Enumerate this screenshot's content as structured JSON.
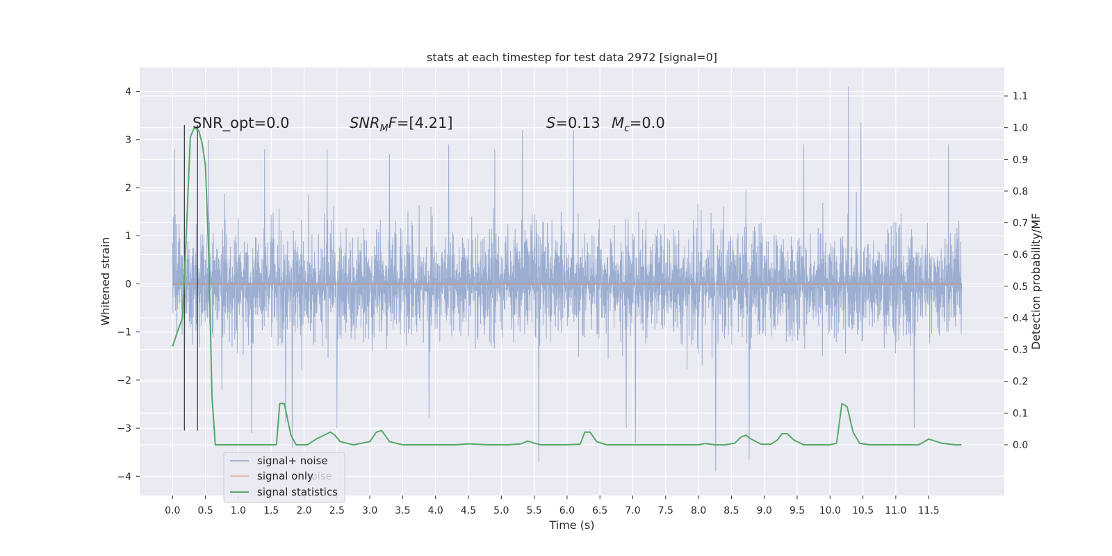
{
  "chart_data": {
    "type": "line",
    "title": "stats at each timestep for test data 2972 [signal=0]",
    "xlabel": "Time (s)",
    "ylabel": "Whitened strain",
    "y2label": "Detection probability/MF",
    "xlim": [
      -0.5,
      12.65
    ],
    "ylim": [
      -4.4,
      4.5
    ],
    "y2lim": [
      -0.16,
      1.19
    ],
    "x_ticks": [
      "0.0",
      "0.5",
      "1.0",
      "1.5",
      "2.0",
      "2.5",
      "3.0",
      "3.5",
      "4.0",
      "4.5",
      "5.0",
      "5.5",
      "6.0",
      "6.5",
      "7.0",
      "7.5",
      "8.0",
      "8.5",
      "9.0",
      "9.5",
      "10.0",
      "10.5",
      "11.0",
      "11.5"
    ],
    "y_ticks": [
      "4",
      "3",
      "2",
      "1",
      "0",
      "−1",
      "−2",
      "−3",
      "−4"
    ],
    "y2_ticks": [
      "1.1",
      "1.0",
      "0.9",
      "0.8",
      "0.7",
      "0.6",
      "0.5",
      "0.4",
      "0.3",
      "0.2",
      "0.1",
      "0.0"
    ],
    "grid": true,
    "legend_position": "lower-left",
    "annotations": {
      "snr_opt": "SNR_opt=0.0",
      "snr_mf": "=[4.21]",
      "snr_mf_main": "SNR",
      "snr_mf_sub": "M",
      "snr_mf_after": "F",
      "s_stat": "=0.13",
      "s_symbol": "S",
      "mc_symbol": "M",
      "mc_sub": "c",
      "mc_value": "=0.0"
    },
    "series": [
      {
        "name": "signal+ noise",
        "color": "#4c72b0",
        "description": "whitened strain, dense noise between about -2 and 2.5 with spikes",
        "range": [
          0.0,
          12.0
        ],
        "envelope_low": -1.9,
        "envelope_high": 2.3,
        "spikes": [
          [
            0.03,
            2.8
          ],
          [
            0.18,
            -1.9
          ],
          [
            0.55,
            3.0
          ],
          [
            0.75,
            -2.2
          ],
          [
            1.2,
            -3.1
          ],
          [
            1.4,
            2.8
          ],
          [
            1.72,
            -2.9
          ],
          [
            1.82,
            -3.4
          ],
          [
            2.35,
            2.8
          ],
          [
            2.5,
            -3.0
          ],
          [
            3.3,
            2.7
          ],
          [
            3.9,
            -2.8
          ],
          [
            4.2,
            2.9
          ],
          [
            4.9,
            2.8
          ],
          [
            5.32,
            3.2
          ],
          [
            5.57,
            -3.7
          ],
          [
            6.1,
            3.2
          ],
          [
            6.9,
            -3.0
          ],
          [
            7.04,
            -3.3
          ],
          [
            8.26,
            -3.9
          ],
          [
            8.77,
            -3.65
          ],
          [
            9.6,
            2.9
          ],
          [
            10.28,
            4.1
          ],
          [
            10.47,
            3.35
          ],
          [
            11.28,
            -3.0
          ],
          [
            11.8,
            2.9
          ]
        ]
      },
      {
        "name": "signal only",
        "color": "#dd8452",
        "x": [
          0.0,
          12.0
        ],
        "y": [
          0.0,
          0.0
        ]
      },
      {
        "name": "signal statistics",
        "color": "#55a868",
        "x": [
          0.0,
          0.08,
          0.15,
          0.2,
          0.27,
          0.33,
          0.4,
          0.45,
          0.5,
          0.55,
          0.6,
          0.65,
          0.8,
          1.0,
          1.3,
          1.58,
          1.63,
          1.7,
          1.8,
          1.88,
          1.95,
          2.05,
          2.2,
          2.4,
          2.47,
          2.55,
          2.75,
          3.0,
          3.1,
          3.18,
          3.3,
          3.5,
          3.8,
          4.0,
          4.3,
          4.5,
          4.8,
          5.1,
          5.3,
          5.4,
          5.5,
          5.6,
          6.0,
          6.2,
          6.27,
          6.35,
          6.45,
          6.6,
          7.0,
          8.0,
          8.1,
          8.25,
          8.4,
          8.55,
          8.65,
          8.72,
          8.8,
          8.95,
          9.1,
          9.2,
          9.27,
          9.35,
          9.45,
          9.6,
          10.0,
          10.1,
          10.18,
          10.26,
          10.35,
          10.45,
          10.6,
          11.0,
          11.2,
          11.35,
          11.5,
          11.7,
          11.9,
          12.0
        ],
        "y": [
          0.31,
          0.36,
          0.4,
          0.62,
          0.97,
          1.0,
          0.99,
          0.95,
          0.88,
          0.6,
          0.15,
          0.0,
          0.0,
          0.0,
          0.0,
          0.0,
          0.13,
          0.13,
          0.03,
          0.0,
          0.0,
          0.0,
          0.02,
          0.04,
          0.03,
          0.01,
          0.0,
          0.01,
          0.04,
          0.045,
          0.01,
          0.0,
          0.0,
          0.0,
          0.0,
          0.003,
          0.0,
          0.0,
          0.003,
          0.012,
          0.005,
          0.0,
          0.0,
          0.002,
          0.04,
          0.04,
          0.01,
          0.0,
          0.0,
          0.0,
          0.004,
          0.0,
          0.0,
          0.005,
          0.025,
          0.03,
          0.018,
          0.002,
          0.002,
          0.015,
          0.035,
          0.035,
          0.015,
          0.0,
          0.0,
          0.005,
          0.13,
          0.12,
          0.04,
          0.005,
          0.0,
          0.0,
          0.0,
          0.0,
          0.018,
          0.005,
          0.0,
          0.0
        ]
      }
    ],
    "vertical_lines": [
      0.18,
      0.38
    ]
  },
  "legend": {
    "items": [
      "signal+ noise",
      "signal only",
      "signal statistics"
    ],
    "ghost_text": "noise"
  }
}
